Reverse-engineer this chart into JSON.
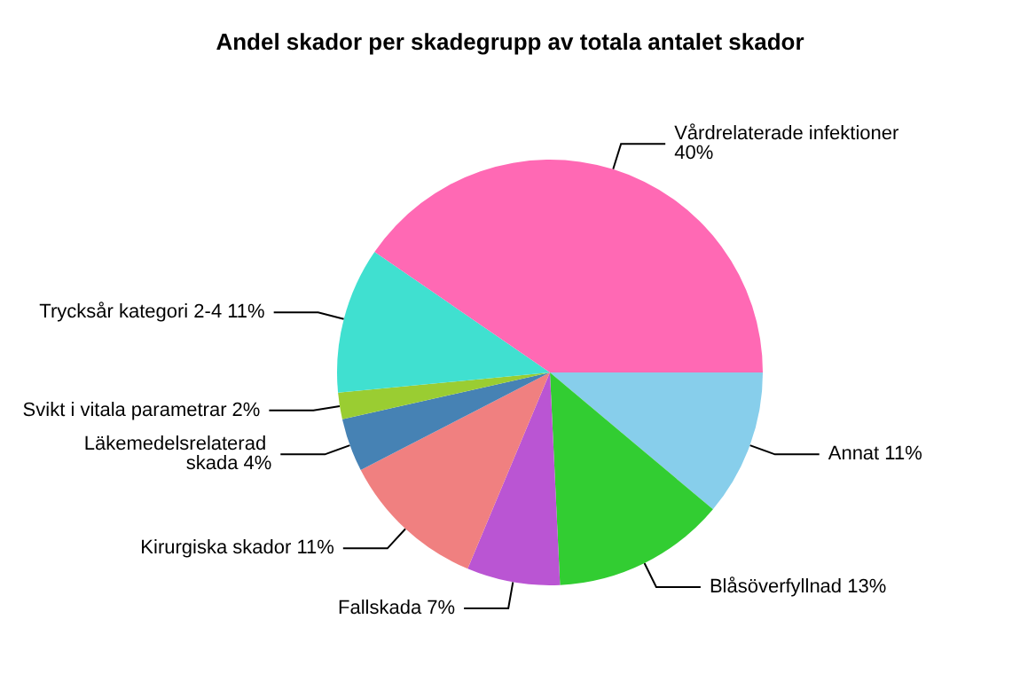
{
  "chart_data": {
    "type": "pie",
    "title": "Andel skador per skadegrupp av totala antalet skador",
    "categories": [
      "Annat",
      "Blåsöverfyllnad",
      "Fallskada",
      "Kirurgiska skador",
      "Läkemedelsrelaterad skada",
      "Svikt i vitala parametrar",
      "Trycksår kategori 2-4",
      "Vårdrelaterade infektioner"
    ],
    "values": [
      11,
      13,
      7,
      11,
      4,
      2,
      11,
      40
    ],
    "value_labels": [
      "11%",
      "13%",
      "7%",
      "11%",
      "4%",
      "2%",
      "11%",
      "40%"
    ],
    "colors": [
      "#87ceeb",
      "#32cd32",
      "#ba55d3",
      "#f08080",
      "#4682b4",
      "#9acd32",
      "#40e0d0",
      "#ff69b4"
    ],
    "legend": false
  }
}
